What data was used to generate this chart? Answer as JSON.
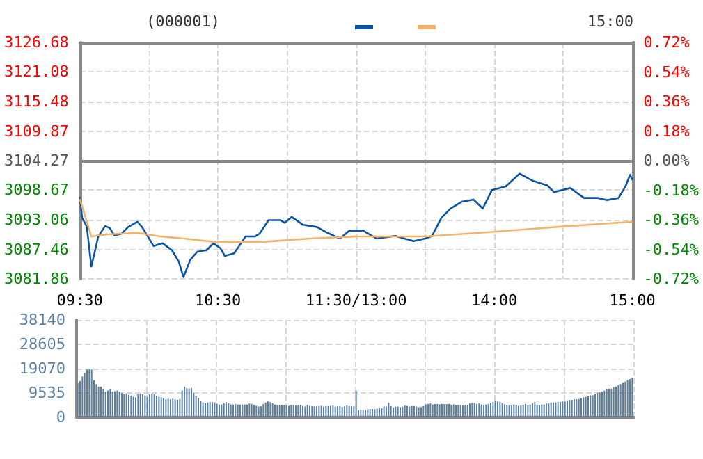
{
  "chart_data": [
    {
      "type": "line",
      "title": "(000001)",
      "annotations": [
        "15:00"
      ],
      "categories": [
        "09:30",
        null,
        null,
        null,
        null,
        null,
        null,
        null,
        null,
        null,
        null,
        null,
        null,
        null,
        null,
        null,
        null,
        null,
        null,
        null,
        null,
        null,
        null,
        null,
        null,
        null,
        null,
        null,
        null,
        null,
        null,
        null,
        null,
        null,
        null,
        null,
        null,
        null,
        null,
        null,
        null,
        null,
        null,
        null,
        null,
        null,
        null,
        null,
        null,
        null,
        null,
        null,
        null,
        null,
        null,
        null,
        null,
        null,
        null,
        null,
        "10:30",
        null,
        null,
        null,
        null,
        null,
        null,
        null,
        null,
        null,
        null,
        null,
        null,
        null,
        null,
        null,
        null,
        null,
        null,
        null,
        null,
        null,
        null,
        null,
        null,
        null,
        null,
        null,
        null,
        null,
        null,
        null,
        null,
        null,
        null,
        null,
        null,
        null,
        null,
        null,
        null,
        null,
        null,
        null,
        null,
        null,
        null,
        null,
        null,
        null,
        null,
        null,
        null,
        null,
        null,
        null,
        null,
        null,
        null,
        null,
        "11:30/13:00",
        null,
        null,
        null,
        null,
        null,
        null,
        null,
        null,
        null,
        null,
        null,
        null,
        null,
        null,
        null,
        null,
        null,
        null,
        null,
        null,
        null,
        null,
        null,
        null,
        null,
        null,
        null,
        null,
        null,
        null,
        null,
        null,
        null,
        null,
        null,
        null,
        null,
        null,
        null,
        null,
        null,
        null,
        null,
        null,
        null,
        null,
        null,
        null,
        null,
        null,
        null,
        null,
        null,
        null,
        null,
        null,
        null,
        null,
        null,
        "14:00",
        null,
        null,
        null,
        null,
        null,
        null,
        null,
        null,
        null,
        null,
        null,
        null,
        null,
        null,
        null,
        null,
        null,
        null,
        null,
        null,
        null,
        null,
        null,
        null,
        null,
        null,
        null,
        null,
        null,
        null,
        null,
        null,
        null,
        null,
        null,
        null,
        null,
        null,
        null,
        null,
        null,
        null,
        null,
        null,
        null,
        null,
        null,
        null,
        null,
        null,
        null,
        null,
        null,
        null,
        null,
        null,
        null,
        null,
        null,
        "15:00"
      ],
      "series": [
        {
          "color": "#0a55a3",
          "values": [
            3097.4,
            3093.4,
            null,
            3091.8,
            null,
            3084.2,
            null,
            null,
            3089.9,
            null,
            null,
            3091.9,
            null,
            3091.5,
            null,
            3090.1,
            null,
            null,
            3090.4,
            null,
            null,
            3091.7,
            null,
            null,
            null,
            3092.7,
            null,
            3091.7,
            null,
            null,
            null,
            null,
            3088.1,
            null,
            null,
            null,
            3088.6,
            null,
            null,
            null,
            3087.3,
            null,
            null,
            3085.1,
            null,
            3082.2,
            null,
            null,
            3085.5,
            null,
            null,
            3087.0,
            null,
            null,
            null,
            3087.3,
            null,
            null,
            3088.6,
            null,
            null,
            3087.7,
            null,
            3086.2,
            null,
            null,
            null,
            3086.7,
            null,
            null,
            3088.6,
            null,
            3089.9,
            null,
            null,
            null,
            3089.9,
            null,
            3090.4,
            null,
            null,
            null,
            3093.0,
            null,
            null,
            null,
            null,
            3093.0,
            null,
            3092.5,
            null,
            null,
            3093.6,
            null,
            null,
            null,
            null,
            3092.1,
            null,
            null,
            null,
            null,
            null,
            3091.7,
            null,
            null,
            null,
            3090.7,
            null,
            null,
            null,
            null,
            null,
            3089.5,
            null,
            null,
            null,
            3091.0,
            null,
            null,
            null,
            null,
            null,
            3091.0,
            null,
            null,
            null,
            null,
            null,
            3089.5,
            null,
            null,
            null,
            null,
            null,
            null,
            null,
            3090.0,
            null,
            null,
            null,
            null,
            null,
            null,
            null,
            3089.0,
            null,
            null,
            null,
            null,
            3089.5,
            null,
            null,
            3090.0,
            null,
            null,
            null,
            3093.4,
            null,
            null,
            null,
            3095.2,
            null,
            null,
            null,
            null,
            3096.5,
            null,
            null,
            null,
            null,
            3096.9,
            null,
            null,
            null,
            3095.2,
            null,
            null,
            null,
            3098.7,
            null,
            null,
            null,
            null,
            null,
            3099.4,
            null,
            null,
            null,
            null,
            null,
            3101.8,
            null,
            null,
            null,
            null,
            null,
            3100.4,
            null,
            null,
            null,
            null,
            null,
            3099.6,
            null,
            null,
            3098.3,
            null,
            null,
            null,
            null,
            null,
            null,
            3099.1,
            null,
            null,
            null,
            null,
            null,
            3097.2,
            null,
            null,
            null,
            null,
            null,
            3097.2,
            null,
            null,
            null,
            3096.8,
            null,
            null,
            null,
            null,
            3097.2,
            null,
            null,
            3099.4,
            null,
            3101.6,
            3100.6
          ]
        },
        {
          "color": "#f5b26b",
          "values": [
            3097.0,
            null,
            null,
            null,
            null,
            3089.9,
            null,
            null,
            null,
            null,
            null,
            null,
            3090.3,
            null,
            null,
            null,
            null,
            null,
            null,
            null,
            null,
            null,
            null,
            null,
            null,
            3090.6,
            null,
            null,
            null,
            null,
            null,
            null,
            null,
            null,
            null,
            3089.9,
            null,
            null,
            null,
            null,
            null,
            null,
            null,
            null,
            null,
            3089.5,
            null,
            null,
            null,
            null,
            null,
            null,
            null,
            null,
            null,
            null,
            null,
            null,
            null,
            null,
            3088.8,
            null,
            null,
            null,
            null,
            null,
            null,
            null,
            null,
            null,
            null,
            null,
            null,
            null,
            null,
            null,
            null,
            null,
            null,
            null,
            3088.9,
            null,
            null,
            null,
            null,
            null,
            null,
            null,
            null,
            null,
            null,
            null,
            null,
            null,
            null,
            null,
            null,
            null,
            null,
            null,
            3089.5,
            null,
            null,
            null,
            null,
            null,
            null,
            null,
            null,
            null,
            null,
            null,
            null,
            null,
            null,
            null,
            null,
            null,
            null,
            null,
            3089.9,
            null,
            null,
            null,
            null,
            null,
            null,
            null,
            null,
            null,
            null,
            null,
            null,
            null,
            null,
            null,
            null,
            null,
            null,
            null,
            null,
            null,
            null,
            null,
            null,
            null,
            null,
            null,
            null,
            null,
            3089.9,
            null,
            null,
            null,
            null,
            null,
            null,
            null,
            null,
            null,
            null,
            null,
            null,
            null,
            null,
            null,
            null,
            null,
            null,
            null,
            null,
            null,
            null,
            null,
            null,
            null,
            null,
            null,
            null,
            null,
            3090.8,
            null,
            null,
            null,
            null,
            null,
            null,
            null,
            null,
            null,
            null,
            null,
            null,
            null,
            null,
            null,
            null,
            null,
            null,
            null,
            null,
            null,
            null,
            null,
            null,
            null,
            null,
            null,
            null,
            null,
            3091.8,
            null,
            null,
            null,
            null,
            null,
            null,
            null,
            null,
            null,
            null,
            null,
            null,
            null,
            null,
            null,
            null,
            null,
            null,
            null,
            null,
            null,
            null,
            null,
            null,
            null,
            null,
            null,
            null,
            null,
            3092.7
          ]
        }
      ],
      "ylim": [
        3081.86,
        3126.68
      ],
      "yticks": [
        3081.86,
        3087.46,
        3093.06,
        3098.67,
        3104.27,
        3109.87,
        3115.48,
        3121.08,
        3126.68
      ],
      "y2lim": [
        -0.72,
        0.72
      ],
      "y2ticks": [
        {
          "value": -0.72,
          "label": "-0.72%"
        },
        {
          "value": -0.54,
          "label": "-0.54%"
        },
        {
          "value": -0.36,
          "label": "-0.36%"
        },
        {
          "value": -0.18,
          "label": "-0.18%"
        },
        {
          "value": 0,
          "label": "0.00%"
        },
        {
          "value": 0.18,
          "label": "0.18%"
        },
        {
          "value": 0.36,
          "label": "0.36%"
        },
        {
          "value": 0.54,
          "label": "0.54%"
        },
        {
          "value": 0.72,
          "label": "0.72%"
        }
      ],
      "grid": true,
      "marker": "none",
      "line_style": "solid"
    },
    {
      "type": "bar",
      "color": "#5b7fa3",
      "tick_labels": "y",
      "grid": true,
      "categories": [
        null,
        null,
        null,
        null,
        null,
        null,
        null,
        null,
        null,
        null,
        null,
        null,
        null,
        null,
        null,
        null,
        null,
        null,
        null,
        null,
        null,
        null,
        null,
        null,
        null,
        null,
        null,
        null,
        null,
        null,
        null,
        null,
        null,
        null,
        null,
        null,
        null,
        null,
        null,
        null,
        null,
        null,
        null,
        null,
        null,
        null,
        null,
        null,
        null,
        null,
        null,
        null,
        null,
        null,
        null,
        null,
        null,
        null,
        null,
        null,
        null,
        null,
        null,
        null,
        null,
        null,
        null,
        null,
        null,
        null,
        null,
        null,
        null,
        null,
        null,
        null,
        null,
        null,
        null,
        null,
        null,
        null,
        null,
        null,
        null,
        null,
        null,
        null,
        null,
        null,
        null,
        null,
        null,
        null,
        null,
        null,
        null,
        null,
        null,
        null,
        null,
        null,
        null,
        null,
        null,
        null,
        null,
        null,
        null,
        null,
        null,
        null,
        null,
        null,
        null,
        null,
        null,
        null,
        null,
        null,
        null,
        null,
        null,
        null,
        null,
        null,
        null,
        null,
        null,
        null,
        null,
        null,
        null,
        null,
        null,
        null,
        null,
        null,
        null,
        null,
        null,
        null,
        null,
        null,
        null,
        null,
        null,
        null,
        null,
        null,
        null,
        null,
        null,
        null,
        null,
        null,
        null,
        null,
        null,
        null,
        null,
        null,
        null,
        null,
        null,
        null,
        null,
        null,
        null,
        null,
        null,
        null,
        null,
        null,
        null,
        null,
        null,
        null,
        null,
        null,
        null,
        null,
        null,
        null,
        null,
        null,
        null,
        null,
        null,
        null,
        null,
        null,
        null,
        null,
        null,
        null,
        null,
        null,
        null,
        null,
        null,
        null,
        null,
        null,
        null,
        null,
        null,
        null,
        null,
        null,
        null,
        null,
        null,
        null,
        null,
        null,
        null,
        null,
        null,
        null,
        null,
        null,
        null,
        null,
        null,
        null,
        null,
        null,
        null,
        null,
        null,
        null,
        null,
        null,
        null,
        null,
        null,
        null,
        null,
        null
      ],
      "ylim": [
        0,
        38140
      ],
      "yticks": [
        0,
        9535,
        19070,
        28605,
        38140
      ],
      "values": [
        13500,
        14200,
        16000,
        17500,
        18700,
        18700,
        18700,
        14500,
        13000,
        12000,
        12000,
        11000,
        10000,
        10500,
        11000,
        10000,
        10200,
        10500,
        10000,
        9500,
        9000,
        9300,
        8800,
        8500,
        8000,
        7800,
        9000,
        9200,
        9000,
        8500,
        8000,
        9000,
        9300,
        9000,
        8500,
        8000,
        7800,
        7500,
        7000,
        7200,
        7000,
        7300,
        7000,
        6800,
        7200,
        10500,
        12000,
        11500,
        11300,
        11500,
        9500,
        8500,
        7500,
        6500,
        5800,
        5500,
        5800,
        6000,
        6000,
        5800,
        5200,
        5000,
        5000,
        5400,
        6000,
        5500,
        5000,
        5000,
        5200,
        5000,
        5000,
        5000,
        5000,
        5000,
        5400,
        5200,
        4800,
        4500,
        4200,
        4300,
        5200,
        5800,
        6200,
        6000,
        5500,
        5000,
        4800,
        4800,
        4800,
        4800,
        4600,
        4500,
        4800,
        4800,
        4600,
        4700,
        4800,
        4500,
        4200,
        4800,
        4500,
        4300,
        4300,
        4300,
        4400,
        4500,
        4200,
        4400,
        4400,
        4500,
        4600,
        4200,
        4300,
        4400,
        4100,
        4200,
        4600,
        4400,
        4300,
        4300,
        10500,
        2700,
        2900,
        3000,
        3000,
        3200,
        3200,
        3300,
        3200,
        3400,
        3600,
        3500,
        4200,
        4200,
        5700,
        4400,
        3800,
        4200,
        4200,
        4000,
        4200,
        4600,
        4400,
        4200,
        4400,
        4400,
        4200,
        4000,
        4000,
        4400,
        5000,
        5200,
        5400,
        5000,
        5200,
        5200,
        5000,
        5200,
        5200,
        5200,
        5200,
        4800,
        5000,
        4800,
        4800,
        4800,
        4600,
        4800,
        4800,
        5400,
        5600,
        5600,
        5200,
        5400,
        5000,
        4800,
        5000,
        5200,
        5600,
        6000,
        6600,
        6200,
        6000,
        5600,
        5200,
        4800,
        4600,
        4600,
        5000,
        4800,
        4400,
        4600,
        4800,
        5200,
        4600,
        5000,
        5600,
        6000,
        5000,
        4600,
        5000,
        5000,
        5400,
        5400,
        5800,
        5800,
        5800,
        6000,
        6000,
        6200,
        6200,
        6600,
        6800,
        6800,
        7000,
        7000,
        7200,
        7400,
        7800,
        8000,
        8400,
        8600,
        8600,
        9000,
        9600,
        9800,
        10000,
        10400,
        11000,
        11200,
        11200,
        11800,
        12000,
        12600,
        13000,
        13600,
        14000,
        14600,
        15000,
        15400
      ]
    }
  ]
}
